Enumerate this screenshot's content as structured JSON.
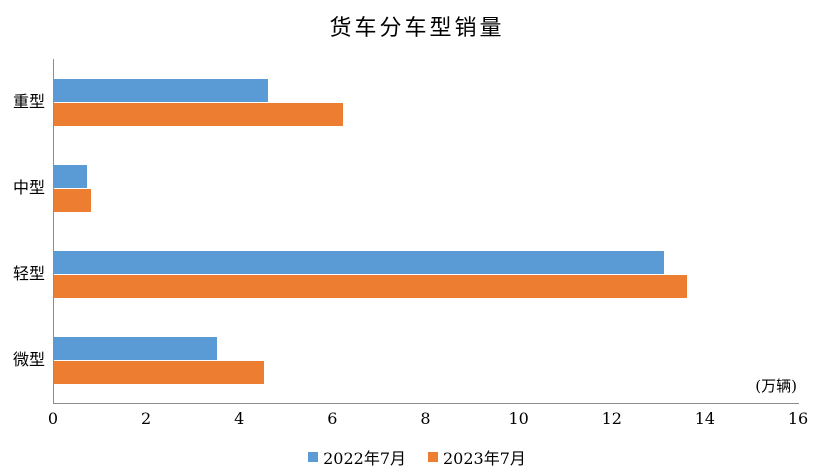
{
  "chart_data": {
    "type": "bar",
    "orientation": "horizontal",
    "title": "货车分车型销量",
    "unit_label": "(万辆)",
    "categories": [
      "重型",
      "中型",
      "轻型",
      "微型"
    ],
    "series": [
      {
        "name": "2022年7月",
        "color": "#5B9BD5",
        "values": [
          4.6,
          0.7,
          13.1,
          3.5
        ]
      },
      {
        "name": "2023年7月",
        "color": "#ED7D31",
        "values": [
          6.2,
          0.8,
          13.6,
          4.5
        ]
      }
    ],
    "xlim": [
      0,
      16
    ],
    "xticks": [
      0,
      2,
      4,
      6,
      8,
      10,
      12,
      14,
      16
    ],
    "grid": false,
    "legend_position": "bottom",
    "axis_color": "#8c8c8c",
    "text_color": "#000000"
  }
}
